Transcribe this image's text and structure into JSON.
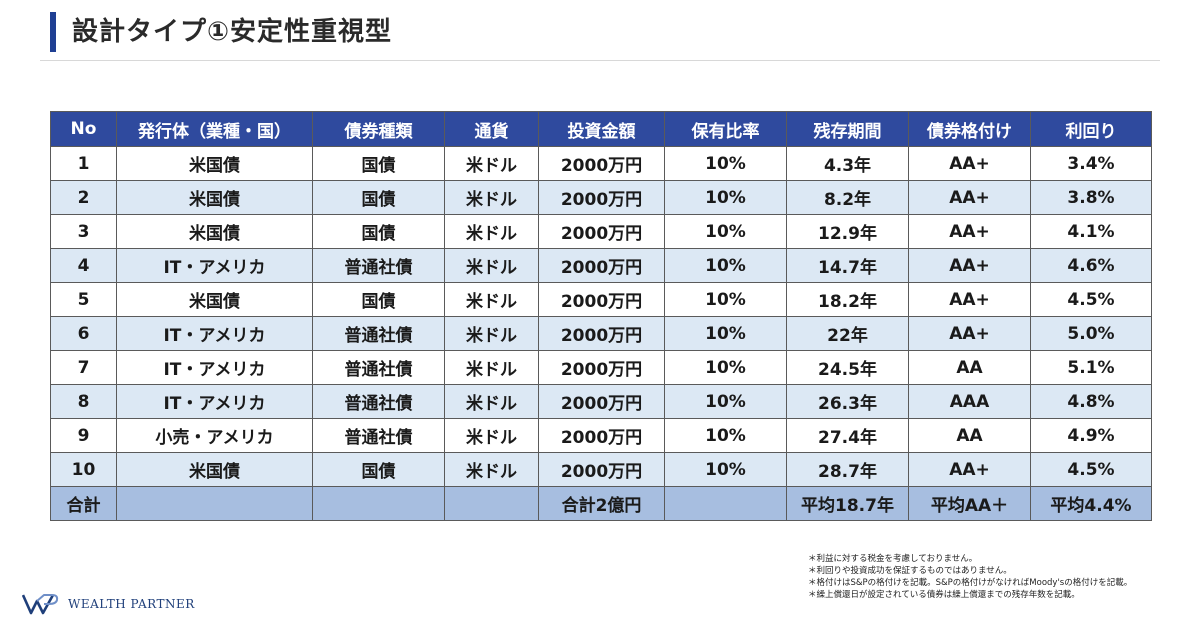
{
  "header": {
    "title": "設計タイプ①安定性重視型",
    "accent_color": "#1f3f93"
  },
  "table": {
    "columns": [
      "No",
      "発行体（業種・国）",
      "債券種類",
      "通貨",
      "投資金額",
      "保有比率",
      "残存期間",
      "債券格付け",
      "利回り"
    ],
    "rows": [
      [
        "1",
        "米国債",
        "国債",
        "米ドル",
        "2000万円",
        "10%",
        "4.3年",
        "AA+",
        "3.4%"
      ],
      [
        "2",
        "米国債",
        "国債",
        "米ドル",
        "2000万円",
        "10%",
        "8.2年",
        "AA+",
        "3.8%"
      ],
      [
        "3",
        "米国債",
        "国債",
        "米ドル",
        "2000万円",
        "10%",
        "12.9年",
        "AA+",
        "4.1%"
      ],
      [
        "4",
        "IT・アメリカ",
        "普通社債",
        "米ドル",
        "2000万円",
        "10%",
        "14.7年",
        "AA+",
        "4.6%"
      ],
      [
        "5",
        "米国債",
        "国債",
        "米ドル",
        "2000万円",
        "10%",
        "18.2年",
        "AA+",
        "4.5%"
      ],
      [
        "6",
        "IT・アメリカ",
        "普通社債",
        "米ドル",
        "2000万円",
        "10%",
        "22年",
        "AA+",
        "5.0%"
      ],
      [
        "7",
        "IT・アメリカ",
        "普通社債",
        "米ドル",
        "2000万円",
        "10%",
        "24.5年",
        "AA",
        "5.1%"
      ],
      [
        "8",
        "IT・アメリカ",
        "普通社債",
        "米ドル",
        "2000万円",
        "10%",
        "26.3年",
        "AAA",
        "4.8%"
      ],
      [
        "9",
        "小売・アメリカ",
        "普通社債",
        "米ドル",
        "2000万円",
        "10%",
        "27.4年",
        "AA",
        "4.9%"
      ],
      [
        "10",
        "米国債",
        "国債",
        "米ドル",
        "2000万円",
        "10%",
        "28.7年",
        "AA+",
        "4.5%"
      ]
    ],
    "total": [
      "合計",
      "",
      "",
      "",
      "合計2億円",
      "",
      "平均18.7年",
      "平均AA＋",
      "平均4.4%"
    ],
    "header_color": "#2f4a9e",
    "stripe_color": "#dce8f4",
    "total_color": "#a7bee0"
  },
  "notes": [
    "＊利益に対する税金を考慮しておりません。",
    "＊利回りや投資成功を保証するものではありません。",
    "＊格付けはS&Pの格付けを記載。S&Pの格付けがなければMoody'sの格付けを記載。",
    "＊繰上償還日が設定されている債券は繰上償還までの残存年数を記載。"
  ],
  "logo": {
    "icon": "wp-logo-icon",
    "text": "WEALTH PARTNER",
    "color": "#1f3f7a"
  }
}
